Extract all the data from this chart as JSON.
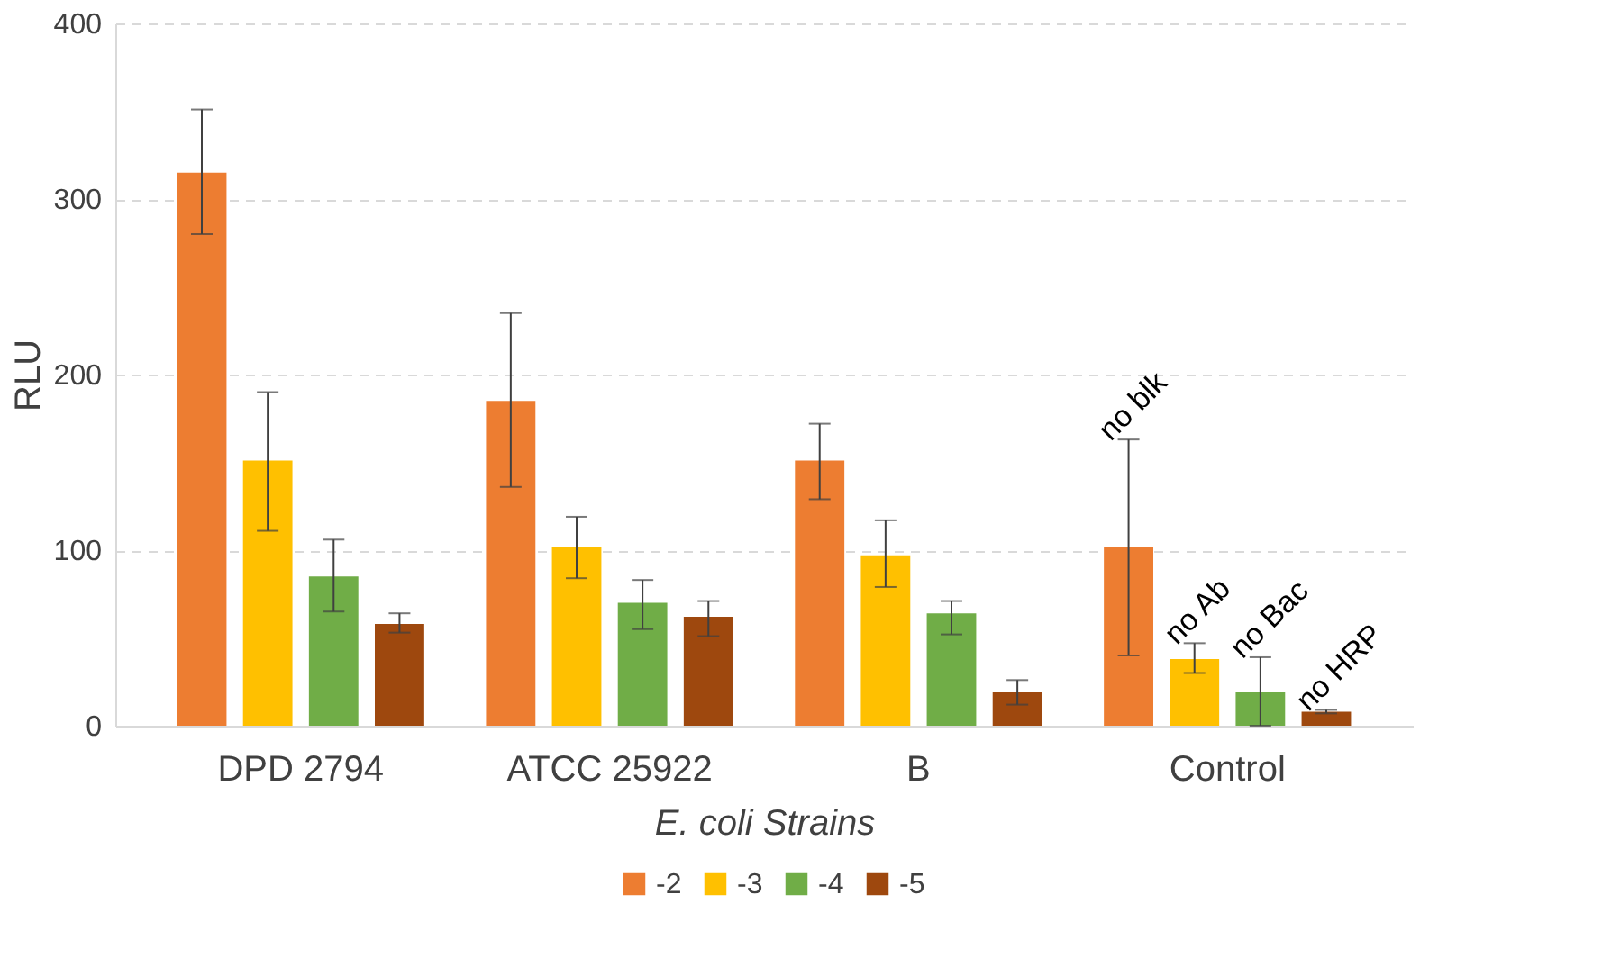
{
  "chart_data": {
    "type": "bar",
    "xlabel": "E. coli Strains",
    "ylabel": "RLU",
    "categories": [
      "DPD 2794",
      "ATCC 25922",
      "B",
      "Control"
    ],
    "series": [
      {
        "name": "-2",
        "color": "#ed7d31",
        "values": [
          315,
          185,
          151,
          102
        ],
        "errors": [
          [
            280,
            351
          ],
          [
            136,
            235
          ],
          [
            129,
            172
          ],
          [
            40,
            163
          ]
        ]
      },
      {
        "name": "-3",
        "color": "#ffc000",
        "values": [
          151,
          102,
          97,
          38
        ],
        "errors": [
          [
            111,
            190
          ],
          [
            84,
            119
          ],
          [
            79,
            117
          ],
          [
            30,
            47
          ]
        ]
      },
      {
        "name": "-4",
        "color": "#70ad47",
        "values": [
          85,
          70,
          64,
          19
        ],
        "errors": [
          [
            65,
            106
          ],
          [
            55,
            83
          ],
          [
            52,
            71
          ],
          [
            0,
            39
          ]
        ]
      },
      {
        "name": "-5",
        "color": "#9e480e",
        "values": [
          58,
          62,
          19,
          8
        ],
        "errors": [
          [
            53,
            64
          ],
          [
            51,
            71
          ],
          [
            12,
            26
          ],
          [
            7,
            9
          ]
        ]
      }
    ],
    "annotations": [
      "no blk",
      "no Ab",
      "no Bac",
      "no HRP"
    ],
    "ylim": [
      0,
      400
    ],
    "yticks": [
      0,
      100,
      200,
      300,
      400
    ],
    "grid": "y",
    "legend": "bottom"
  }
}
